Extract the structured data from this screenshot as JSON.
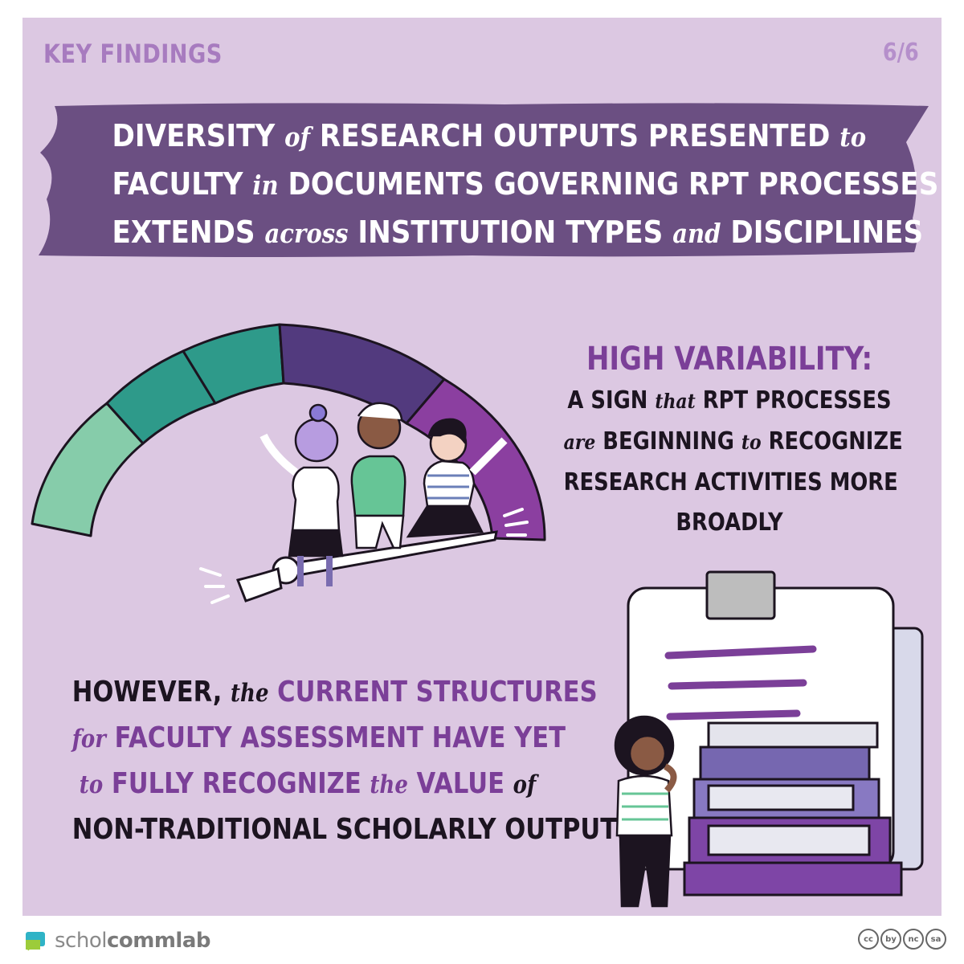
{
  "header": {
    "kicker": "KEY FINDINGS",
    "page": "6/6"
  },
  "banner": {
    "line1": [
      {
        "t": "DIVERSITY ",
        "s": false
      },
      {
        "t": "of",
        "s": true
      },
      {
        "t": " RESEARCH OUTPUTS PRESENTED ",
        "s": false
      },
      {
        "t": "to",
        "s": true
      }
    ],
    "line2": [
      {
        "t": "FACULTY ",
        "s": false
      },
      {
        "t": "in",
        "s": true
      },
      {
        "t": " DOCUMENTS GOVERNING RPT PROCESSES",
        "s": false
      }
    ],
    "line3": [
      {
        "t": "EXTENDS ",
        "s": false
      },
      {
        "t": "across",
        "s": true
      },
      {
        "t": " INSTITUTION TYPES ",
        "s": false
      },
      {
        "t": "and",
        "s": true
      },
      {
        "t": " DISCIPLINES",
        "s": false
      }
    ]
  },
  "high_variability": {
    "title": "HIGH VARIABILITY:",
    "line1": [
      {
        "t": "A SIGN ",
        "s": false
      },
      {
        "t": "that",
        "s": true
      },
      {
        "t": " RPT PROCESSES",
        "s": false
      }
    ],
    "line2": [
      {
        "t": "are",
        "s": true
      },
      {
        "t": " BEGINNING ",
        "s": false
      },
      {
        "t": "to",
        "s": true
      },
      {
        "t": " RECOGNIZE",
        "s": false
      }
    ],
    "line3": [
      {
        "t": "RESEARCH ACTIVITIES MORE",
        "s": false
      }
    ],
    "line4": [
      {
        "t": "BROADLY",
        "s": false
      }
    ]
  },
  "however": {
    "line1": [
      {
        "t": "HOWEVER, ",
        "c": "dark",
        "s": false
      },
      {
        "t": "the",
        "c": "dark",
        "s": true
      },
      {
        "t": " CURRENT STRUCTURES",
        "c": "purple",
        "s": false
      }
    ],
    "line2": [
      {
        "t": "for",
        "c": "purple",
        "s": true
      },
      {
        "t": " FACULTY ASSESSMENT HAVE YET",
        "c": "purple",
        "s": false
      }
    ],
    "line3": [
      {
        "t": "to",
        "c": "purple",
        "s": true
      },
      {
        "t": " FULLY RECOGNIZE ",
        "c": "purple",
        "s": false
      },
      {
        "t": "the",
        "c": "purple",
        "s": true
      },
      {
        "t": " VALUE ",
        "c": "purple",
        "s": false
      },
      {
        "t": "of",
        "c": "dark",
        "s": true
      }
    ],
    "line4": [
      {
        "t": "NON-TRADITIONAL  SCHOLARLY OUTPUTS",
        "c": "dark",
        "s": false
      }
    ]
  },
  "footer": {
    "logo_light": "schol",
    "logo_bold": "commlab",
    "license": [
      "cc",
      "by",
      "nc",
      "sa"
    ]
  },
  "colors": {
    "background": "#dcc8e2",
    "banner": "#6b4f82",
    "accent": "#7b3f98",
    "teal": "#2e9a8a",
    "mint": "#86ccaa"
  },
  "gauge": {
    "segments": [
      "mint",
      "teal",
      "teal",
      "indigo",
      "purple"
    ],
    "needle_level": "high"
  }
}
